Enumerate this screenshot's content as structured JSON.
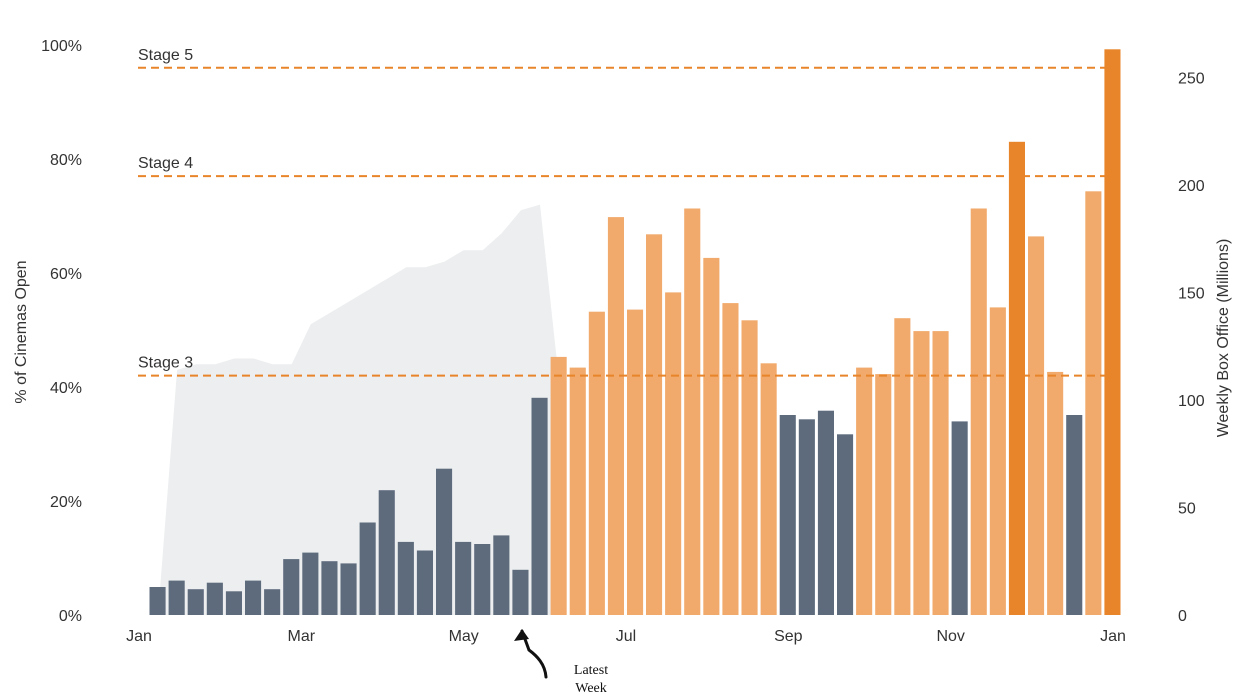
{
  "chart_data": {
    "type": "bar",
    "title": "",
    "xlabel": "",
    "ylabel_left": "% of Cinemas Open",
    "ylabel_right": "Weekly Box Office (Millions)",
    "x_tick_labels": [
      "Jan",
      "Mar",
      "May",
      "Jul",
      "Sep",
      "Nov",
      "Jan"
    ],
    "y_left_ticks": [
      "0%",
      "20%",
      "40%",
      "60%",
      "80%",
      "100%"
    ],
    "y_left_lim": [
      0,
      100
    ],
    "y_right_ticks": [
      "0",
      "50",
      "100",
      "150",
      "200",
      "250"
    ],
    "y_right_lim": [
      0,
      265
    ],
    "grid": false,
    "stages": [
      {
        "label": "Stage 3",
        "pct": 42
      },
      {
        "label": "Stage 4",
        "pct": 77
      },
      {
        "label": "Stage 5",
        "pct": 96
      }
    ],
    "annotation": {
      "lines": [
        "Latest",
        "Week"
      ]
    },
    "colors": {
      "past": "#5d6b7d",
      "current": "#f1aa6b",
      "highlight": "#e8852a",
      "area": "#eceeef",
      "stage_line": "#e8852a"
    },
    "series": [
      {
        "name": "Weekly Box Office",
        "values": [
          13,
          16,
          12,
          15,
          11,
          16,
          12,
          26,
          29,
          25,
          24,
          43,
          58,
          34,
          30,
          68,
          34,
          33,
          37,
          21,
          101,
          120,
          115,
          141,
          185,
          142,
          177,
          150,
          189,
          166,
          145,
          137,
          117,
          93,
          91,
          95,
          84,
          115,
          112,
          138,
          132,
          132,
          90,
          189,
          143,
          220,
          176,
          113,
          93,
          197,
          263
        ],
        "category": [
          "past",
          "past",
          "past",
          "past",
          "past",
          "past",
          "past",
          "past",
          "past",
          "past",
          "past",
          "past",
          "past",
          "past",
          "past",
          "past",
          "past",
          "past",
          "past",
          "past",
          "past",
          "current",
          "current",
          "current",
          "current",
          "current",
          "current",
          "current",
          "current",
          "current",
          "current",
          "current",
          "current",
          "past",
          "past",
          "past",
          "past",
          "current",
          "current",
          "current",
          "current",
          "current",
          "past",
          "current",
          "current",
          "highlight",
          "current",
          "current",
          "past",
          "current",
          "highlight"
        ]
      },
      {
        "name": "% of Cinemas Open",
        "type": "area",
        "values": [
          0,
          43,
          44,
          44,
          45,
          45,
          44,
          44,
          51,
          53,
          55,
          57,
          59,
          61,
          61,
          62,
          64,
          64,
          67,
          71,
          72,
          41
        ]
      }
    ]
  }
}
